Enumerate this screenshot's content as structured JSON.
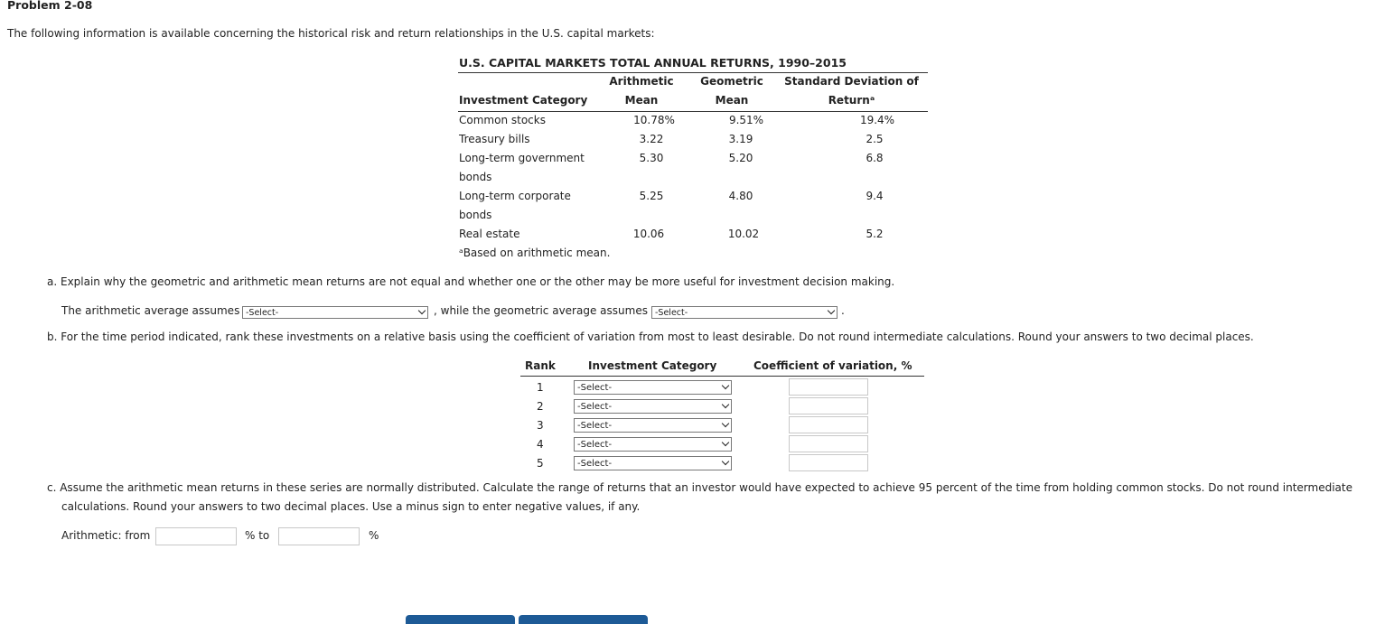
{
  "problem_title": "Problem 2-08",
  "intro": "The following information is available concerning the historical risk and return relationships in the U.S. capital markets:",
  "table": {
    "title": "U.S. CAPITAL MARKETS TOTAL ANNUAL RETURNS, 1990–2015",
    "headers": {
      "category": "Investment Category",
      "arith_top": "Arithmetic",
      "arith_bottom": "Mean",
      "geo_top": "Geometric",
      "geo_bottom": "Mean",
      "sd_top": "Standard Deviation of",
      "sd_bottom": "Returnᵃ"
    },
    "rows": [
      {
        "category": "Common stocks",
        "category2": "",
        "arith": "10.78%",
        "geo": "9.51%",
        "sd": "19.4%"
      },
      {
        "category": "Treasury bills",
        "category2": "",
        "arith": "3.22",
        "geo": "3.19",
        "sd": "2.5"
      },
      {
        "category": "Long-term government",
        "category2": "bonds",
        "arith": "5.30",
        "geo": "5.20",
        "sd": "6.8"
      },
      {
        "category": "Long-term corporate",
        "category2": "bonds",
        "arith": "5.25",
        "geo": "4.80",
        "sd": "9.4"
      },
      {
        "category": "Real estate",
        "category2": "",
        "arith": "10.06",
        "geo": "10.02",
        "sd": "5.2"
      }
    ],
    "footnote": "ᵃBased on arithmetic mean."
  },
  "part_a": {
    "question": "a. Explain why the geometric and arithmetic mean returns are not equal and whether one or the other may be more useful for investment decision making.",
    "lead": "The arithmetic average assumes",
    "select1": "-Select-",
    "mid": ", while the geometric average assumes",
    "select2": "-Select-",
    "end": "."
  },
  "part_b": {
    "question": "b. For the time period indicated, rank these investments on a relative basis using the coefficient of variation from most to least desirable. Do not round intermediate calculations. Round your answers to two decimal places.",
    "headers": {
      "rank": "Rank",
      "category": "Investment Category",
      "cv": "Coefficient of variation, %"
    },
    "rows": [
      {
        "rank": "1",
        "select": "-Select-"
      },
      {
        "rank": "2",
        "select": "-Select-"
      },
      {
        "rank": "3",
        "select": "-Select-"
      },
      {
        "rank": "4",
        "select": "-Select-"
      },
      {
        "rank": "5",
        "select": "-Select-"
      }
    ]
  },
  "part_c": {
    "question_line1": "c. Assume the arithmetic mean returns in these series are normally distributed. Calculate the range of returns that an investor would have expected to achieve 95 percent of the time from holding common stocks. Do not round intermediate",
    "question_line2": "calculations. Round your answers to two decimal places. Use a minus sign to enter negative values, if any.",
    "label_from": "Arithmetic: from",
    "label_to": "% to",
    "label_pct": "%"
  },
  "colors": {
    "accent_button": "#1d5a96"
  }
}
